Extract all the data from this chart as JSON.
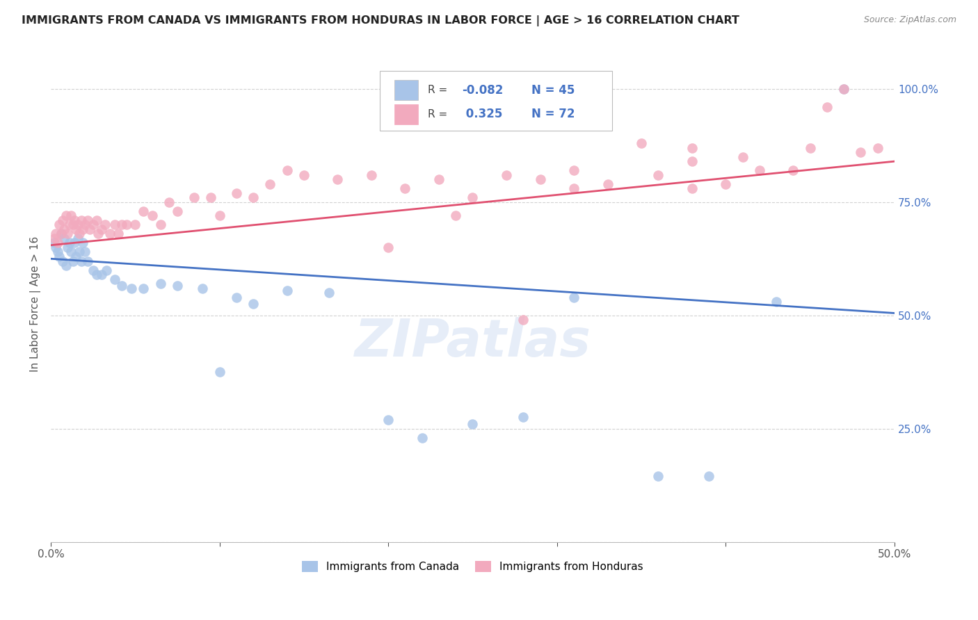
{
  "title": "IMMIGRANTS FROM CANADA VS IMMIGRANTS FROM HONDURAS IN LABOR FORCE | AGE > 16 CORRELATION CHART",
  "source": "Source: ZipAtlas.com",
  "ylabel": "In Labor Force | Age > 16",
  "xlim": [
    0.0,
    0.5
  ],
  "ylim": [
    0.0,
    1.05
  ],
  "color_canada": "#a8c4e8",
  "color_honduras": "#f2aabe",
  "color_canada_line": "#4472c4",
  "color_honduras_line": "#e05070",
  "watermark": "ZIPatlas",
  "canada_x": [
    0.002,
    0.003,
    0.004,
    0.005,
    0.006,
    0.007,
    0.008,
    0.009,
    0.01,
    0.011,
    0.012,
    0.013,
    0.014,
    0.015,
    0.016,
    0.017,
    0.018,
    0.019,
    0.02,
    0.022,
    0.025,
    0.027,
    0.03,
    0.033,
    0.038,
    0.042,
    0.048,
    0.055,
    0.065,
    0.075,
    0.09,
    0.1,
    0.11,
    0.12,
    0.14,
    0.165,
    0.2,
    0.22,
    0.25,
    0.28,
    0.31,
    0.36,
    0.39,
    0.43,
    0.47
  ],
  "canada_y": [
    0.66,
    0.65,
    0.64,
    0.63,
    0.68,
    0.62,
    0.67,
    0.61,
    0.65,
    0.66,
    0.64,
    0.62,
    0.66,
    0.63,
    0.67,
    0.64,
    0.62,
    0.66,
    0.64,
    0.62,
    0.6,
    0.59,
    0.59,
    0.6,
    0.58,
    0.565,
    0.56,
    0.56,
    0.57,
    0.565,
    0.56,
    0.375,
    0.54,
    0.525,
    0.555,
    0.55,
    0.27,
    0.23,
    0.26,
    0.275,
    0.54,
    0.145,
    0.145,
    0.53,
    1.0
  ],
  "honduras_x": [
    0.002,
    0.003,
    0.004,
    0.005,
    0.006,
    0.007,
    0.008,
    0.009,
    0.01,
    0.011,
    0.012,
    0.013,
    0.014,
    0.015,
    0.016,
    0.017,
    0.018,
    0.019,
    0.02,
    0.022,
    0.023,
    0.025,
    0.027,
    0.028,
    0.03,
    0.032,
    0.035,
    0.038,
    0.04,
    0.042,
    0.045,
    0.05,
    0.055,
    0.06,
    0.065,
    0.07,
    0.075,
    0.085,
    0.095,
    0.1,
    0.11,
    0.12,
    0.13,
    0.14,
    0.15,
    0.17,
    0.19,
    0.21,
    0.23,
    0.25,
    0.27,
    0.29,
    0.31,
    0.33,
    0.36,
    0.38,
    0.4,
    0.42,
    0.44,
    0.46,
    0.2,
    0.24,
    0.28,
    0.31,
    0.38,
    0.41,
    0.45,
    0.48,
    0.49,
    0.38,
    0.35,
    0.47
  ],
  "honduras_y": [
    0.67,
    0.68,
    0.66,
    0.7,
    0.68,
    0.71,
    0.69,
    0.72,
    0.68,
    0.7,
    0.72,
    0.7,
    0.71,
    0.69,
    0.7,
    0.68,
    0.71,
    0.69,
    0.7,
    0.71,
    0.69,
    0.7,
    0.71,
    0.68,
    0.69,
    0.7,
    0.68,
    0.7,
    0.68,
    0.7,
    0.7,
    0.7,
    0.73,
    0.72,
    0.7,
    0.75,
    0.73,
    0.76,
    0.76,
    0.72,
    0.77,
    0.76,
    0.79,
    0.82,
    0.81,
    0.8,
    0.81,
    0.78,
    0.8,
    0.76,
    0.81,
    0.8,
    0.82,
    0.79,
    0.81,
    0.84,
    0.79,
    0.82,
    0.82,
    0.96,
    0.65,
    0.72,
    0.49,
    0.78,
    0.78,
    0.85,
    0.87,
    0.86,
    0.87,
    0.87,
    0.88,
    1.0
  ],
  "blue_line_x": [
    0.0,
    0.5
  ],
  "blue_line_y": [
    0.625,
    0.505
  ],
  "pink_line_x": [
    0.0,
    0.5
  ],
  "pink_line_y": [
    0.655,
    0.84
  ],
  "background_color": "#ffffff",
  "grid_color": "#cccccc"
}
